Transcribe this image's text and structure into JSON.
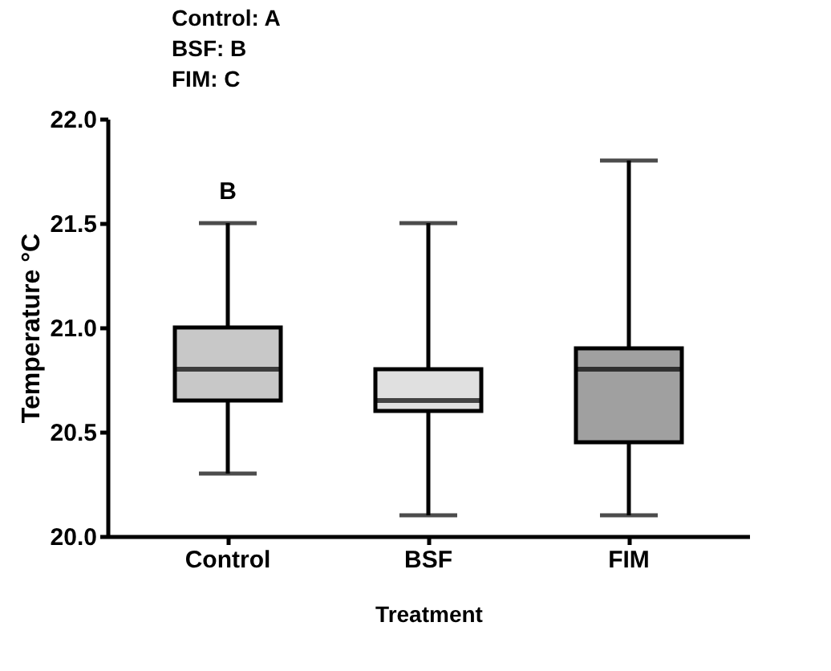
{
  "chart_data": {
    "type": "box",
    "xlabel": "Treatment",
    "ylabel": "Temperature °C",
    "categories": [
      "Control",
      "BSF",
      "FIM"
    ],
    "colors": [
      "#c8c8c8",
      "#e0e0e0",
      "#a0a0a0"
    ],
    "boxes": [
      {
        "low": 20.3,
        "q1": 20.65,
        "median": 20.8,
        "q3": 21.0,
        "high": 21.5
      },
      {
        "low": 20.1,
        "q1": 20.6,
        "median": 20.65,
        "q3": 20.8,
        "high": 21.5
      },
      {
        "low": 20.1,
        "q1": 20.45,
        "median": 20.8,
        "q3": 20.9,
        "high": 21.8
      }
    ],
    "ylim": [
      20.0,
      22.0
    ],
    "yticks": [
      {
        "value": 20.0,
        "label": "20.0"
      },
      {
        "value": 20.5,
        "label": "20.5"
      },
      {
        "value": 21.0,
        "label": "21.0"
      },
      {
        "value": 21.5,
        "label": "21.5"
      },
      {
        "value": 22.0,
        "label": "22.0"
      }
    ],
    "grid": false,
    "annotations": [
      "Control: A",
      "BSF: B",
      "FIM: C",
      "B"
    ]
  }
}
